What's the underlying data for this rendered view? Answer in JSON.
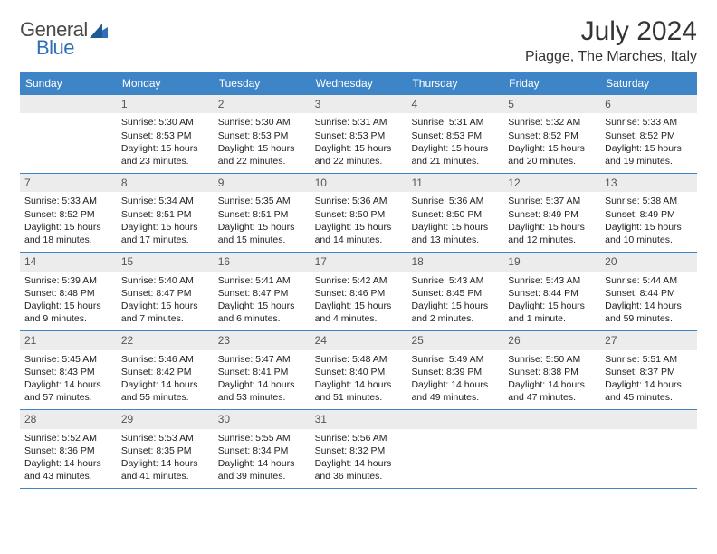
{
  "logo": {
    "general": "General",
    "blue": "Blue"
  },
  "title": "July 2024",
  "location": "Piagge, The Marches, Italy",
  "colors": {
    "header_bg": "#3d85c6",
    "header_text": "#ffffff",
    "daynum_bg": "#ececec",
    "daynum_text": "#555555",
    "body_text": "#222222",
    "divider": "#3d85c6",
    "logo_gray": "#4a4a4a",
    "logo_blue": "#2e6fb5"
  },
  "weekdays": [
    "Sunday",
    "Monday",
    "Tuesday",
    "Wednesday",
    "Thursday",
    "Friday",
    "Saturday"
  ],
  "weeks": [
    [
      null,
      {
        "n": "1",
        "r": "Sunrise: 5:30 AM",
        "s": "Sunset: 8:53 PM",
        "d1": "Daylight: 15 hours",
        "d2": "and 23 minutes."
      },
      {
        "n": "2",
        "r": "Sunrise: 5:30 AM",
        "s": "Sunset: 8:53 PM",
        "d1": "Daylight: 15 hours",
        "d2": "and 22 minutes."
      },
      {
        "n": "3",
        "r": "Sunrise: 5:31 AM",
        "s": "Sunset: 8:53 PM",
        "d1": "Daylight: 15 hours",
        "d2": "and 22 minutes."
      },
      {
        "n": "4",
        "r": "Sunrise: 5:31 AM",
        "s": "Sunset: 8:53 PM",
        "d1": "Daylight: 15 hours",
        "d2": "and 21 minutes."
      },
      {
        "n": "5",
        "r": "Sunrise: 5:32 AM",
        "s": "Sunset: 8:52 PM",
        "d1": "Daylight: 15 hours",
        "d2": "and 20 minutes."
      },
      {
        "n": "6",
        "r": "Sunrise: 5:33 AM",
        "s": "Sunset: 8:52 PM",
        "d1": "Daylight: 15 hours",
        "d2": "and 19 minutes."
      }
    ],
    [
      {
        "n": "7",
        "r": "Sunrise: 5:33 AM",
        "s": "Sunset: 8:52 PM",
        "d1": "Daylight: 15 hours",
        "d2": "and 18 minutes."
      },
      {
        "n": "8",
        "r": "Sunrise: 5:34 AM",
        "s": "Sunset: 8:51 PM",
        "d1": "Daylight: 15 hours",
        "d2": "and 17 minutes."
      },
      {
        "n": "9",
        "r": "Sunrise: 5:35 AM",
        "s": "Sunset: 8:51 PM",
        "d1": "Daylight: 15 hours",
        "d2": "and 15 minutes."
      },
      {
        "n": "10",
        "r": "Sunrise: 5:36 AM",
        "s": "Sunset: 8:50 PM",
        "d1": "Daylight: 15 hours",
        "d2": "and 14 minutes."
      },
      {
        "n": "11",
        "r": "Sunrise: 5:36 AM",
        "s": "Sunset: 8:50 PM",
        "d1": "Daylight: 15 hours",
        "d2": "and 13 minutes."
      },
      {
        "n": "12",
        "r": "Sunrise: 5:37 AM",
        "s": "Sunset: 8:49 PM",
        "d1": "Daylight: 15 hours",
        "d2": "and 12 minutes."
      },
      {
        "n": "13",
        "r": "Sunrise: 5:38 AM",
        "s": "Sunset: 8:49 PM",
        "d1": "Daylight: 15 hours",
        "d2": "and 10 minutes."
      }
    ],
    [
      {
        "n": "14",
        "r": "Sunrise: 5:39 AM",
        "s": "Sunset: 8:48 PM",
        "d1": "Daylight: 15 hours",
        "d2": "and 9 minutes."
      },
      {
        "n": "15",
        "r": "Sunrise: 5:40 AM",
        "s": "Sunset: 8:47 PM",
        "d1": "Daylight: 15 hours",
        "d2": "and 7 minutes."
      },
      {
        "n": "16",
        "r": "Sunrise: 5:41 AM",
        "s": "Sunset: 8:47 PM",
        "d1": "Daylight: 15 hours",
        "d2": "and 6 minutes."
      },
      {
        "n": "17",
        "r": "Sunrise: 5:42 AM",
        "s": "Sunset: 8:46 PM",
        "d1": "Daylight: 15 hours",
        "d2": "and 4 minutes."
      },
      {
        "n": "18",
        "r": "Sunrise: 5:43 AM",
        "s": "Sunset: 8:45 PM",
        "d1": "Daylight: 15 hours",
        "d2": "and 2 minutes."
      },
      {
        "n": "19",
        "r": "Sunrise: 5:43 AM",
        "s": "Sunset: 8:44 PM",
        "d1": "Daylight: 15 hours",
        "d2": "and 1 minute."
      },
      {
        "n": "20",
        "r": "Sunrise: 5:44 AM",
        "s": "Sunset: 8:44 PM",
        "d1": "Daylight: 14 hours",
        "d2": "and 59 minutes."
      }
    ],
    [
      {
        "n": "21",
        "r": "Sunrise: 5:45 AM",
        "s": "Sunset: 8:43 PM",
        "d1": "Daylight: 14 hours",
        "d2": "and 57 minutes."
      },
      {
        "n": "22",
        "r": "Sunrise: 5:46 AM",
        "s": "Sunset: 8:42 PM",
        "d1": "Daylight: 14 hours",
        "d2": "and 55 minutes."
      },
      {
        "n": "23",
        "r": "Sunrise: 5:47 AM",
        "s": "Sunset: 8:41 PM",
        "d1": "Daylight: 14 hours",
        "d2": "and 53 minutes."
      },
      {
        "n": "24",
        "r": "Sunrise: 5:48 AM",
        "s": "Sunset: 8:40 PM",
        "d1": "Daylight: 14 hours",
        "d2": "and 51 minutes."
      },
      {
        "n": "25",
        "r": "Sunrise: 5:49 AM",
        "s": "Sunset: 8:39 PM",
        "d1": "Daylight: 14 hours",
        "d2": "and 49 minutes."
      },
      {
        "n": "26",
        "r": "Sunrise: 5:50 AM",
        "s": "Sunset: 8:38 PM",
        "d1": "Daylight: 14 hours",
        "d2": "and 47 minutes."
      },
      {
        "n": "27",
        "r": "Sunrise: 5:51 AM",
        "s": "Sunset: 8:37 PM",
        "d1": "Daylight: 14 hours",
        "d2": "and 45 minutes."
      }
    ],
    [
      {
        "n": "28",
        "r": "Sunrise: 5:52 AM",
        "s": "Sunset: 8:36 PM",
        "d1": "Daylight: 14 hours",
        "d2": "and 43 minutes."
      },
      {
        "n": "29",
        "r": "Sunrise: 5:53 AM",
        "s": "Sunset: 8:35 PM",
        "d1": "Daylight: 14 hours",
        "d2": "and 41 minutes."
      },
      {
        "n": "30",
        "r": "Sunrise: 5:55 AM",
        "s": "Sunset: 8:34 PM",
        "d1": "Daylight: 14 hours",
        "d2": "and 39 minutes."
      },
      {
        "n": "31",
        "r": "Sunrise: 5:56 AM",
        "s": "Sunset: 8:32 PM",
        "d1": "Daylight: 14 hours",
        "d2": "and 36 minutes."
      },
      null,
      null,
      null
    ]
  ]
}
